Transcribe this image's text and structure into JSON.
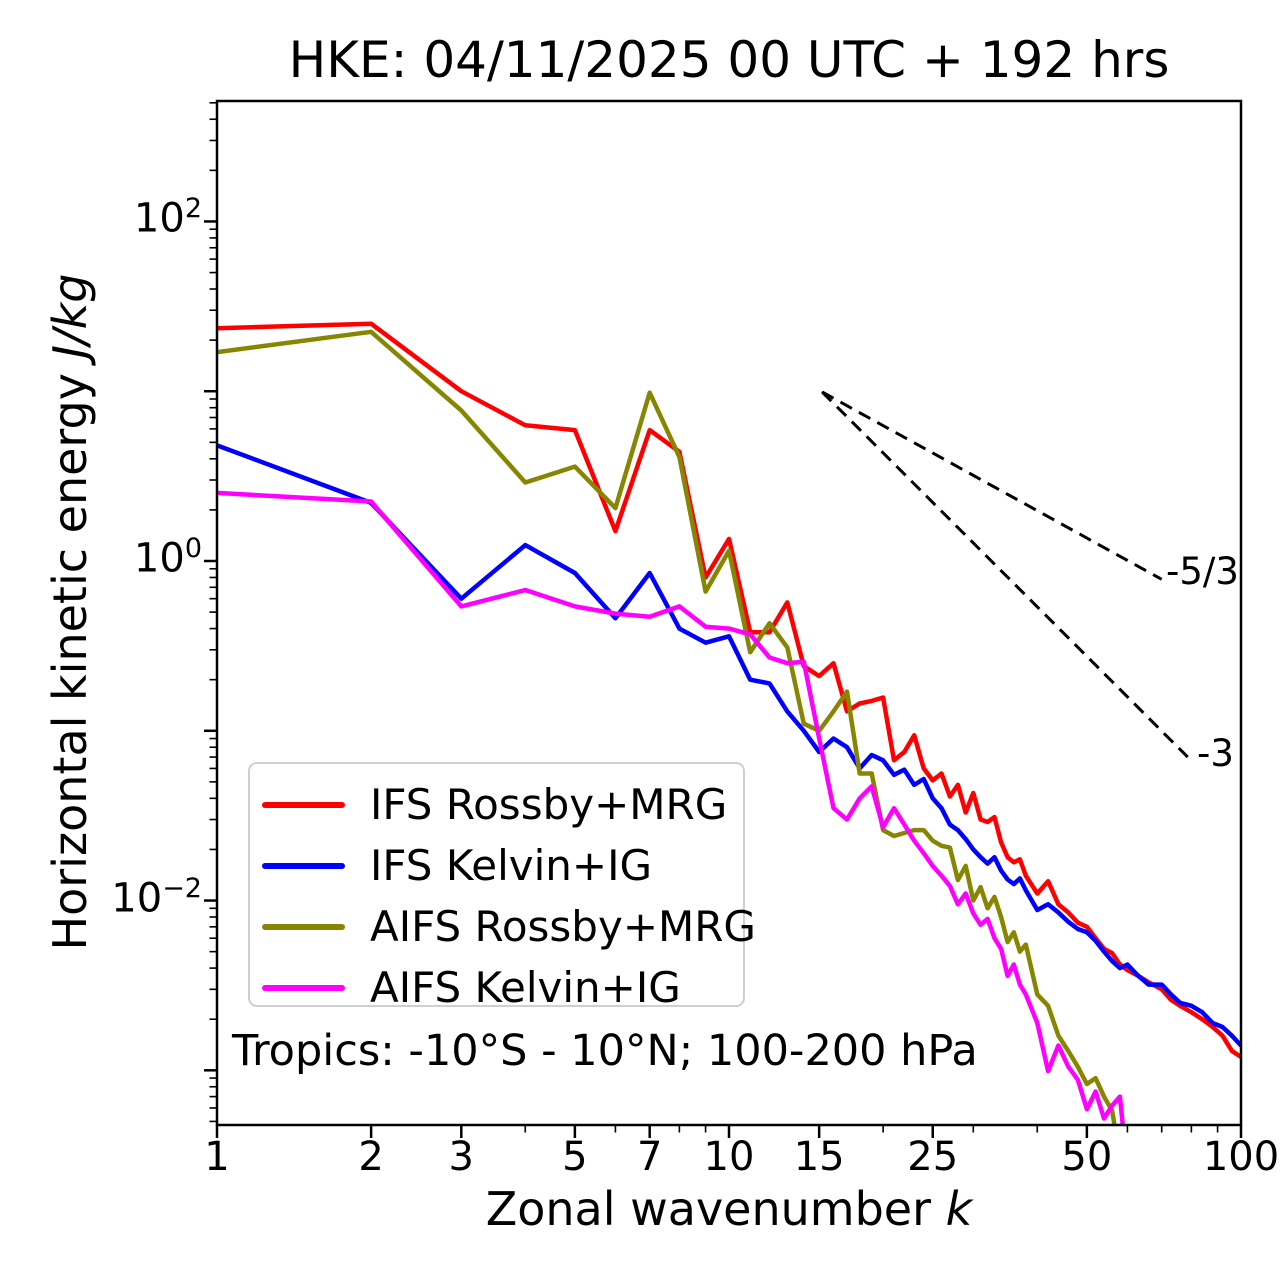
{
  "figure": {
    "title": "HKE: 04/11/2025 00 UTC + 192 hrs",
    "annotation": "Tropics: -10°S - 10°N; 100-200 hPa",
    "x_axis": {
      "label_text": "Zonal wavenumber ",
      "label_symbol": "k",
      "scale": "log",
      "range": [
        1,
        100
      ],
      "major_ticks": [
        1,
        2,
        3,
        5,
        7,
        10,
        15,
        25,
        50,
        100
      ],
      "minor_ticks": [
        4,
        6,
        8,
        9,
        20,
        30,
        40,
        60,
        70,
        80,
        90
      ]
    },
    "y_axis": {
      "label_text": "Horizontal kinetic energy ",
      "label_symbol": "J/kg",
      "scale": "log",
      "range_exponents": [
        -3.32,
        2.71
      ],
      "decade_tick_exponents": [
        2,
        1,
        0,
        -1,
        -2,
        -3
      ],
      "labeled_exponents": [
        2,
        0,
        -2
      ]
    },
    "slope_labels": {
      "shallow": "-5/3",
      "steep": "-3"
    }
  },
  "chart_data": {
    "type": "line",
    "title": "HKE: 04/11/2025 00 UTC + 192 hrs",
    "xlabel": "Zonal wavenumber k",
    "ylabel": "Horizontal kinetic energy J/kg",
    "x_scale": "log",
    "y_scale": "log",
    "xlim": [
      1,
      100
    ],
    "ylim": [
      0.000475,
      512
    ],
    "grid": false,
    "legend_position": "lower-left",
    "legend_note": "Tropics: -10°S - 10°N; 100-200 hPa",
    "series": [
      {
        "name": "IFS Rossby+MRG",
        "color": "#ff0000",
        "points": [
          [
            1,
            23.5
          ],
          [
            2,
            25
          ],
          [
            3,
            10
          ],
          [
            4,
            6.3
          ],
          [
            5,
            5.9
          ],
          [
            6,
            1.5
          ],
          [
            7,
            5.9
          ],
          [
            8,
            4.4
          ],
          [
            9,
            0.8
          ],
          [
            10,
            1.35
          ],
          [
            11,
            0.38
          ],
          [
            12,
            0.38
          ],
          [
            13,
            0.57
          ],
          [
            14,
            0.24
          ],
          [
            15,
            0.21
          ],
          [
            16,
            0.25
          ],
          [
            17,
            0.13
          ],
          [
            18,
            0.145
          ],
          [
            19,
            0.15
          ],
          [
            20,
            0.157
          ],
          [
            21,
            0.067
          ],
          [
            22,
            0.075
          ],
          [
            23,
            0.094
          ],
          [
            24,
            0.06
          ],
          [
            25,
            0.051
          ],
          [
            26,
            0.056
          ],
          [
            27,
            0.041
          ],
          [
            28,
            0.048
          ],
          [
            29,
            0.033
          ],
          [
            30,
            0.043
          ],
          [
            31,
            0.03
          ],
          [
            32,
            0.029
          ],
          [
            33,
            0.031
          ],
          [
            34,
            0.022
          ],
          [
            35,
            0.018
          ],
          [
            36,
            0.0168
          ],
          [
            37,
            0.0175
          ],
          [
            38,
            0.014
          ],
          [
            40,
            0.011
          ],
          [
            42,
            0.013
          ],
          [
            44,
            0.0095
          ],
          [
            46,
            0.0085
          ],
          [
            48,
            0.0074
          ],
          [
            50,
            0.007
          ],
          [
            52,
            0.006
          ],
          [
            54,
            0.0052
          ],
          [
            56,
            0.0049
          ],
          [
            58,
            0.0042
          ],
          [
            60,
            0.0039
          ],
          [
            63,
            0.0036
          ],
          [
            66,
            0.0033
          ],
          [
            70,
            0.003
          ],
          [
            73,
            0.0026
          ],
          [
            76,
            0.0024
          ],
          [
            80,
            0.0022
          ],
          [
            84,
            0.002
          ],
          [
            88,
            0.0018
          ],
          [
            92,
            0.0016
          ],
          [
            96,
            0.0013
          ],
          [
            100,
            0.0012
          ]
        ]
      },
      {
        "name": "IFS Kelvin+IG",
        "color": "#0000ff",
        "points": [
          [
            1,
            4.8
          ],
          [
            2,
            2.2
          ],
          [
            3,
            0.6
          ],
          [
            4,
            1.24
          ],
          [
            5,
            0.85
          ],
          [
            6,
            0.46
          ],
          [
            7,
            0.85
          ],
          [
            8,
            0.4
          ],
          [
            9,
            0.33
          ],
          [
            10,
            0.36
          ],
          [
            11,
            0.2
          ],
          [
            12,
            0.19
          ],
          [
            13,
            0.13
          ],
          [
            14,
            0.1
          ],
          [
            15,
            0.075
          ],
          [
            16,
            0.09
          ],
          [
            17,
            0.08
          ],
          [
            18,
            0.06
          ],
          [
            19,
            0.072
          ],
          [
            20,
            0.067
          ],
          [
            21,
            0.055
          ],
          [
            22,
            0.059
          ],
          [
            23,
            0.048
          ],
          [
            24,
            0.052
          ],
          [
            25,
            0.04
          ],
          [
            26,
            0.035
          ],
          [
            27,
            0.028
          ],
          [
            28,
            0.026
          ],
          [
            29,
            0.023
          ],
          [
            30,
            0.02
          ],
          [
            31,
            0.018
          ],
          [
            32,
            0.0165
          ],
          [
            33,
            0.018
          ],
          [
            34,
            0.015
          ],
          [
            35,
            0.0133
          ],
          [
            36,
            0.0125
          ],
          [
            37,
            0.0135
          ],
          [
            38,
            0.0115
          ],
          [
            40,
            0.0088
          ],
          [
            42,
            0.0095
          ],
          [
            44,
            0.0085
          ],
          [
            46,
            0.0075
          ],
          [
            48,
            0.0068
          ],
          [
            50,
            0.0065
          ],
          [
            52,
            0.0058
          ],
          [
            54,
            0.005
          ],
          [
            56,
            0.0044
          ],
          [
            58,
            0.004
          ],
          [
            60,
            0.0042
          ],
          [
            63,
            0.0036
          ],
          [
            66,
            0.0032
          ],
          [
            70,
            0.0032
          ],
          [
            73,
            0.0028
          ],
          [
            76,
            0.0025
          ],
          [
            80,
            0.0024
          ],
          [
            84,
            0.0022
          ],
          [
            88,
            0.0019
          ],
          [
            92,
            0.0018
          ],
          [
            96,
            0.0016
          ],
          [
            100,
            0.0014
          ]
        ]
      },
      {
        "name": "AIFS Rossby+MRG",
        "color": "#868600",
        "points": [
          [
            1,
            17
          ],
          [
            2,
            22.4
          ],
          [
            3,
            7.7
          ],
          [
            4,
            2.9
          ],
          [
            5,
            3.6
          ],
          [
            6,
            2.05
          ],
          [
            7,
            9.8
          ],
          [
            8,
            4.1
          ],
          [
            9,
            0.66
          ],
          [
            10,
            1.15
          ],
          [
            11,
            0.29
          ],
          [
            12,
            0.43
          ],
          [
            13,
            0.31
          ],
          [
            14,
            0.11
          ],
          [
            15,
            0.1
          ],
          [
            16,
            0.13
          ],
          [
            17,
            0.17
          ],
          [
            18,
            0.056
          ],
          [
            19,
            0.056
          ],
          [
            20,
            0.026
          ],
          [
            21,
            0.024
          ],
          [
            22,
            0.025
          ],
          [
            23,
            0.026
          ],
          [
            24,
            0.026
          ],
          [
            25,
            0.0225
          ],
          [
            26,
            0.021
          ],
          [
            27,
            0.0205
          ],
          [
            28,
            0.0132
          ],
          [
            29,
            0.016
          ],
          [
            30,
            0.01
          ],
          [
            31,
            0.012
          ],
          [
            32,
            0.009
          ],
          [
            33,
            0.0105
          ],
          [
            34,
            0.008
          ],
          [
            35,
            0.0057
          ],
          [
            36,
            0.0065
          ],
          [
            37,
            0.005
          ],
          [
            38,
            0.0055
          ],
          [
            40,
            0.0028
          ],
          [
            42,
            0.0024
          ],
          [
            44,
            0.0016
          ],
          [
            46,
            0.0013
          ],
          [
            48,
            0.00105
          ],
          [
            50,
            0.00083
          ],
          [
            52,
            0.0009
          ],
          [
            54,
            0.0007
          ],
          [
            56,
            0.00058
          ],
          [
            57,
            0.00042
          ]
        ]
      },
      {
        "name": "AIFS Kelvin+IG",
        "color": "#ff00ff",
        "points": [
          [
            1,
            2.52
          ],
          [
            2,
            2.24
          ],
          [
            3,
            0.54
          ],
          [
            4,
            0.675
          ],
          [
            5,
            0.54
          ],
          [
            6,
            0.49
          ],
          [
            7,
            0.47
          ],
          [
            8,
            0.54
          ],
          [
            9,
            0.41
          ],
          [
            10,
            0.4
          ],
          [
            11,
            0.37
          ],
          [
            12,
            0.27
          ],
          [
            13,
            0.25
          ],
          [
            14,
            0.255
          ],
          [
            15,
            0.09
          ],
          [
            16,
            0.035
          ],
          [
            17,
            0.03
          ],
          [
            18,
            0.04
          ],
          [
            19,
            0.047
          ],
          [
            20,
            0.027
          ],
          [
            21,
            0.035
          ],
          [
            22,
            0.028
          ],
          [
            23,
            0.0225
          ],
          [
            24,
            0.019
          ],
          [
            25,
            0.016
          ],
          [
            26,
            0.014
          ],
          [
            27,
            0.0122
          ],
          [
            28,
            0.0095
          ],
          [
            29,
            0.011
          ],
          [
            30,
            0.0084
          ],
          [
            31,
            0.0072
          ],
          [
            32,
            0.0078
          ],
          [
            33,
            0.006
          ],
          [
            34,
            0.0052
          ],
          [
            35,
            0.0036
          ],
          [
            36,
            0.0042
          ],
          [
            37,
            0.0032
          ],
          [
            38,
            0.0028
          ],
          [
            40,
            0.0019
          ],
          [
            42,
            0.00099
          ],
          [
            44,
            0.0014
          ],
          [
            46,
            0.00105
          ],
          [
            48,
            0.00088
          ],
          [
            50,
            0.00059
          ],
          [
            52,
            0.00075
          ],
          [
            54,
            0.00052
          ],
          [
            56,
            0.00062
          ],
          [
            58,
            0.0007
          ],
          [
            59,
            0.00042
          ]
        ]
      }
    ],
    "reference_lines": [
      {
        "label": "-5/3",
        "slope": -1.667,
        "from": [
          15.2,
          9.9
        ],
        "to": [
          70,
          0.78
        ],
        "style": "dashed",
        "color": "#000000"
      },
      {
        "label": "-3",
        "slope": -3.0,
        "from": [
          15.2,
          9.9
        ],
        "to": [
          78.7,
          0.07
        ],
        "style": "dashed",
        "color": "#000000"
      }
    ]
  }
}
